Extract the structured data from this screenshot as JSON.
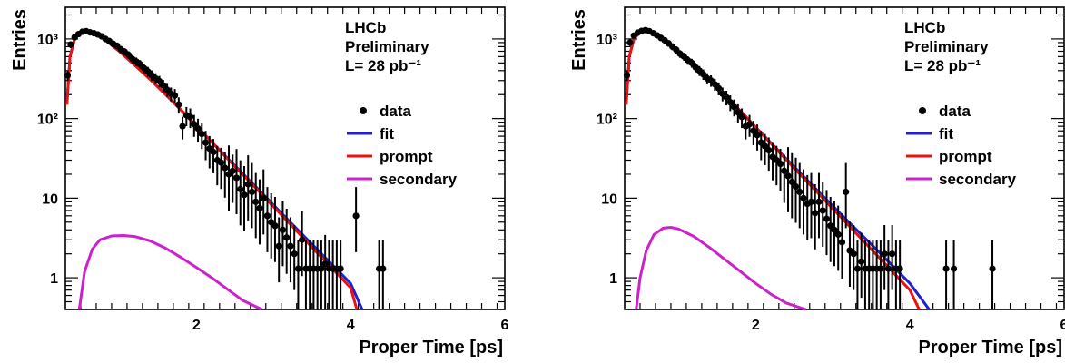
{
  "chart_data": [
    {
      "type": "line",
      "ylabel": "Entries",
      "xlabel": "Proper Time [ps]",
      "xlim": [
        0.3,
        6
      ],
      "ylim": [
        0.4,
        2500
      ],
      "yscale": "log",
      "xticks": [
        "2",
        "4",
        "6"
      ],
      "yticks": [
        "1",
        "10",
        "10²",
        "10³"
      ],
      "annotations": [
        "LHCb",
        "Preliminary",
        "L= 28 pb⁻¹"
      ],
      "legend": [
        "data",
        "fit",
        "prompt",
        "secondary"
      ],
      "legend_placement": "right",
      "colors": {
        "data": "#000000",
        "fit": "#2020d0",
        "prompt": "#ee1111",
        "secondary": "#cc22cc"
      },
      "series": [
        {
          "name": "fit",
          "x": [
            0.32,
            0.36,
            0.42,
            0.5,
            0.6,
            0.7,
            0.8,
            1.0,
            1.2,
            1.4,
            1.6,
            1.8,
            2.0,
            2.4,
            2.8,
            3.2,
            3.6,
            4.0,
            4.15
          ],
          "y": [
            150,
            600,
            1000,
            1200,
            1220,
            1150,
            1000,
            700,
            470,
            310,
            200,
            128,
            80,
            32,
            13,
            5.2,
            2.1,
            0.85,
            0.4
          ]
        },
        {
          "name": "prompt",
          "x": [
            0.32,
            0.36,
            0.42,
            0.5,
            0.6,
            0.7,
            0.8,
            1.0,
            1.2,
            1.4,
            1.6,
            1.8,
            2.0,
            2.4,
            2.8,
            3.2,
            3.6,
            4.0,
            4.08
          ],
          "y": [
            150,
            600,
            1000,
            1200,
            1220,
            1150,
            1000,
            700,
            470,
            310,
            200,
            128,
            80,
            31.5,
            12.5,
            4.9,
            1.9,
            0.75,
            0.4
          ]
        },
        {
          "name": "secondary",
          "x": [
            0.48,
            0.55,
            0.65,
            0.75,
            0.9,
            1.05,
            1.2,
            1.4,
            1.6,
            1.8,
            2.0,
            2.2,
            2.4,
            2.6,
            2.85
          ],
          "y": [
            0.4,
            1.2,
            2.3,
            3.0,
            3.35,
            3.4,
            3.3,
            2.9,
            2.35,
            1.8,
            1.35,
            1.0,
            0.72,
            0.52,
            0.4
          ]
        },
        {
          "name": "data",
          "x": [
            0.33,
            0.37,
            0.42,
            0.47,
            0.52,
            0.57,
            0.62,
            0.67,
            0.72,
            0.77,
            0.82,
            0.87,
            0.92,
            0.97,
            1.02,
            1.07,
            1.12,
            1.17,
            1.22,
            1.27,
            1.32,
            1.37,
            1.42,
            1.47,
            1.52,
            1.57,
            1.62,
            1.67,
            1.72,
            1.77,
            1.82,
            1.87,
            1.92,
            1.97,
            2.02,
            2.07,
            2.12,
            2.17,
            2.22,
            2.27,
            2.32,
            2.37,
            2.42,
            2.47,
            2.52,
            2.57,
            2.62,
            2.67,
            2.72,
            2.77,
            2.82,
            2.87,
            2.92,
            2.97,
            3.02,
            3.07,
            3.12,
            3.17,
            3.22,
            3.27,
            3.32,
            3.37,
            3.42,
            3.47,
            3.52,
            3.57,
            3.62,
            3.67,
            3.72,
            3.77,
            3.82,
            3.87,
            4.07,
            4.37,
            4.42
          ],
          "y": [
            350,
            850,
            1050,
            1150,
            1230,
            1250,
            1210,
            1180,
            1140,
            1080,
            1000,
            940,
            870,
            820,
            740,
            690,
            630,
            560,
            520,
            480,
            430,
            390,
            350,
            320,
            295,
            260,
            230,
            205,
            195,
            150,
            80,
            110,
            105,
            85,
            75,
            64,
            50,
            42,
            38,
            30,
            28,
            24,
            20,
            22,
            18,
            13,
            11,
            15,
            12,
            9,
            7.5,
            10,
            6,
            5,
            4.5,
            2.5,
            4,
            3.2,
            2.5,
            2,
            1.3,
            3,
            1.3,
            1.3,
            1.3,
            1.3,
            1.3,
            1.5,
            1.3,
            1.3,
            1.3,
            1.3,
            6,
            1.3,
            1.3
          ]
        }
      ]
    },
    {
      "type": "line",
      "ylabel": "Entries",
      "xlabel": "Proper Time [ps]",
      "xlim": [
        0.3,
        6
      ],
      "ylim": [
        0.4,
        2500
      ],
      "yscale": "log",
      "xticks": [
        "2",
        "4",
        "6"
      ],
      "yticks": [
        "1",
        "10",
        "10²",
        "10³"
      ],
      "annotations": [
        "LHCb",
        "Preliminary",
        "L= 28 pb⁻¹"
      ],
      "legend": [
        "data",
        "fit",
        "prompt",
        "secondary"
      ],
      "legend_placement": "right",
      "colors": {
        "data": "#000000",
        "fit": "#2020d0",
        "prompt": "#ee1111",
        "secondary": "#cc22cc"
      },
      "series": [
        {
          "name": "fit",
          "x": [
            0.32,
            0.36,
            0.42,
            0.5,
            0.6,
            0.7,
            0.8,
            1.0,
            1.2,
            1.4,
            1.6,
            1.8,
            2.0,
            2.4,
            2.8,
            3.2,
            3.6,
            4.0,
            4.25
          ],
          "y": [
            150,
            600,
            1000,
            1220,
            1250,
            1160,
            1000,
            690,
            460,
            300,
            195,
            125,
            78,
            31,
            12.5,
            5.1,
            2.1,
            0.85,
            0.4
          ]
        },
        {
          "name": "prompt",
          "x": [
            0.32,
            0.36,
            0.42,
            0.5,
            0.6,
            0.7,
            0.8,
            1.0,
            1.2,
            1.4,
            1.6,
            1.8,
            2.0,
            2.4,
            2.8,
            3.2,
            3.6,
            4.0,
            4.12
          ],
          "y": [
            150,
            600,
            1000,
            1220,
            1250,
            1160,
            1000,
            690,
            460,
            300,
            195,
            125,
            78,
            30,
            11.8,
            4.6,
            1.8,
            0.7,
            0.4
          ]
        },
        {
          "name": "secondary",
          "x": [
            0.45,
            0.5,
            0.58,
            0.68,
            0.8,
            0.9,
            1.0,
            1.2,
            1.4,
            1.6,
            1.8,
            2.0,
            2.2,
            2.4,
            2.65
          ],
          "y": [
            0.4,
            1.0,
            2.2,
            3.5,
            4.2,
            4.3,
            4.1,
            3.3,
            2.4,
            1.7,
            1.2,
            0.85,
            0.62,
            0.48,
            0.4
          ]
        },
        {
          "name": "data",
          "x": [
            0.33,
            0.37,
            0.42,
            0.47,
            0.52,
            0.57,
            0.62,
            0.67,
            0.72,
            0.77,
            0.82,
            0.87,
            0.92,
            0.97,
            1.02,
            1.07,
            1.12,
            1.17,
            1.22,
            1.27,
            1.32,
            1.37,
            1.42,
            1.47,
            1.52,
            1.57,
            1.62,
            1.67,
            1.72,
            1.77,
            1.82,
            1.87,
            1.92,
            1.97,
            2.02,
            2.07,
            2.12,
            2.17,
            2.22,
            2.27,
            2.32,
            2.37,
            2.42,
            2.47,
            2.52,
            2.57,
            2.62,
            2.67,
            2.72,
            2.77,
            2.82,
            2.87,
            2.92,
            2.97,
            3.02,
            3.07,
            3.12,
            3.17,
            3.22,
            3.27,
            3.32,
            3.37,
            3.42,
            3.47,
            3.52,
            3.57,
            3.62,
            3.67,
            3.72,
            3.77,
            3.82,
            3.87,
            4.47,
            4.57,
            5.07
          ],
          "y": [
            350,
            900,
            1100,
            1200,
            1260,
            1290,
            1250,
            1180,
            1110,
            1030,
            960,
            880,
            800,
            730,
            650,
            600,
            540,
            500,
            440,
            400,
            360,
            320,
            300,
            270,
            240,
            205,
            185,
            160,
            140,
            120,
            105,
            80,
            85,
            70,
            62,
            50,
            45,
            40,
            33,
            30,
            27,
            22,
            19,
            16,
            14,
            12,
            10,
            8.5,
            9,
            6.5,
            9,
            7,
            5.5,
            4.5,
            4,
            3.5,
            2.8,
            12,
            2.2,
            2,
            1.3,
            1.6,
            1.3,
            1.3,
            1.3,
            1.3,
            1.3,
            2,
            1.3,
            2,
            1.3,
            1.3,
            1.3,
            1.3,
            1.3
          ]
        }
      ]
    }
  ]
}
